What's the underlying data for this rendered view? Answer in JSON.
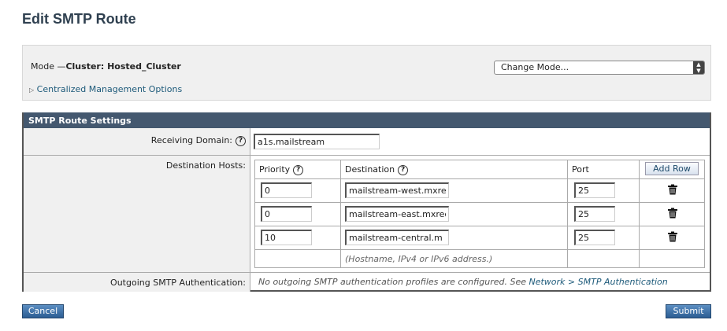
{
  "page_title": "Edit SMTP Route",
  "mode": {
    "label": "Mode —",
    "value": "Cluster: Hosted_Cluster",
    "change_mode": "Change Mode...",
    "centralized": "Centralized Management Options"
  },
  "settings": {
    "header": "SMTP Route Settings",
    "receiving_domain_label": "Receiving Domain:",
    "receiving_domain_value": "a1s.mailstream",
    "destination_hosts_label": "Destination Hosts:",
    "columns": {
      "priority": "Priority",
      "destination": "Destination",
      "port": "Port",
      "add_row": "Add Row"
    },
    "rows": [
      {
        "priority": "0",
        "destination": "mailstream-west.mxre",
        "port": "25"
      },
      {
        "priority": "0",
        "destination": "mailstream-east.mxrec",
        "port": "25"
      },
      {
        "priority": "10",
        "destination": "mailstream-central.m",
        "port": "25"
      }
    ],
    "hint": "(Hostname, IPv4 or IPv6 address.)",
    "outgoing_label": "Outgoing SMTP Authentication:",
    "outgoing_text": "No outgoing SMTP authentication profiles are configured. See",
    "outgoing_link": "Network > SMTP Authentication"
  },
  "buttons": {
    "cancel": "Cancel",
    "submit": "Submit"
  }
}
